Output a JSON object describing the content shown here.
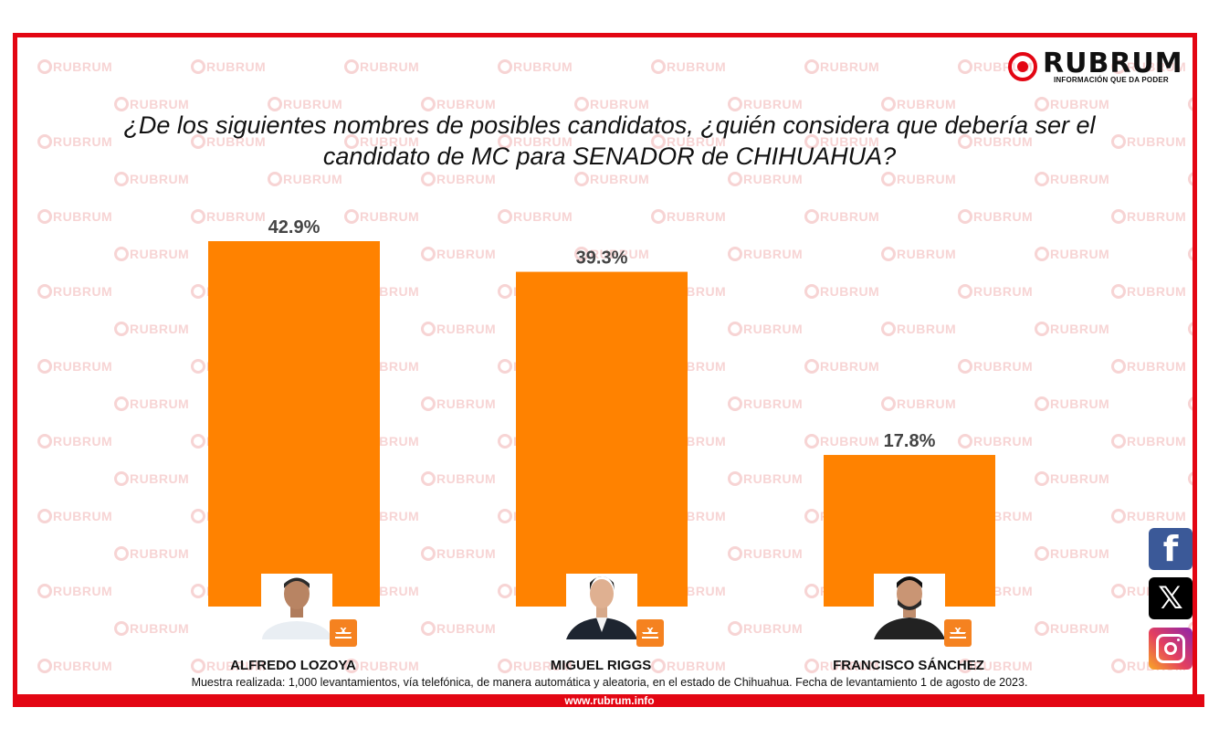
{
  "brand": {
    "name": "RUBRUM",
    "tagline": "INFORMACIÓN QUE DA PODER",
    "accent_color": "#e30613",
    "watermark_text": "RUBRUM"
  },
  "title_line1": "¿De los siguientes nombres de posibles candidatos, ¿quién considera que debería ser el",
  "title_line2": "candidato de MC para SENADOR de CHIHUAHUA?",
  "chart_data": {
    "type": "bar",
    "title": "¿De los siguientes nombres de posibles candidatos, ¿quién considera que debería ser el candidato de MC para SENADOR de CHIHUAHUA?",
    "categories": [
      "ALFREDO LOZOYA",
      "MIGUEL RIGGS",
      "FRANCISCO SÁNCHEZ"
    ],
    "values": [
      42.9,
      39.3,
      17.8
    ],
    "value_labels": [
      "42.9%",
      "39.3%",
      "17.8%"
    ],
    "bar_color": "#ff8200",
    "ylim": [
      0,
      42.9
    ],
    "grid": false,
    "legend": "none"
  },
  "note": "Muestra realizada: 1,000 levantamientos, vía telefónica, de manera automática y aleatoria, en el estado de Chihuahua. Fecha de levantamiento 1 de agosto de 2023.",
  "footer_url": "www.rubrum.info",
  "social": {
    "facebook_icon": "facebook-icon",
    "x_icon": "x-icon",
    "instagram_icon": "instagram-icon",
    "x_glyph": "𝕏",
    "fb_glyph": "f"
  }
}
